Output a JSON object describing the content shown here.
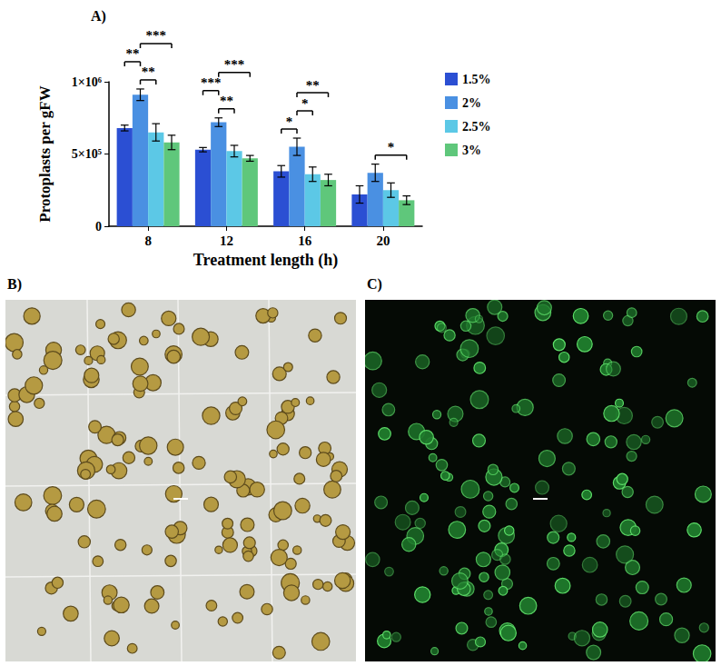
{
  "chart_data": {
    "type": "bar",
    "title": "A)",
    "categories": [
      "8",
      "12",
      "16",
      "20"
    ],
    "x_label": "Treatment length (h)",
    "y_label": "Protoplasts per gFW",
    "series": [
      {
        "name": "1.5%",
        "color": "#2b4fd3",
        "values": [
          680000,
          530000,
          380000,
          220000
        ],
        "errors": [
          20000,
          15000,
          40000,
          60000
        ]
      },
      {
        "name": "2%",
        "color": "#4a90e2",
        "values": [
          910000,
          720000,
          550000,
          370000
        ],
        "errors": [
          40000,
          30000,
          60000,
          60000
        ]
      },
      {
        "name": "2.5%",
        "color": "#5cc8e6",
        "values": [
          650000,
          520000,
          360000,
          250000
        ],
        "errors": [
          60000,
          40000,
          50000,
          50000
        ]
      },
      {
        "name": "3%",
        "color": "#5fc77b",
        "values": [
          580000,
          470000,
          320000,
          180000
        ],
        "errors": [
          50000,
          20000,
          40000,
          30000
        ]
      }
    ],
    "ylim": [
      0,
      1000000
    ],
    "yticks": [
      0,
      {
        "value": 500000,
        "label": "5×10⁵"
      },
      {
        "value": 1000000,
        "label": "1×10⁶"
      }
    ],
    "grid": false,
    "legend": "right",
    "annotations": [
      {
        "category": "8",
        "from": "2%",
        "to": "2.5%",
        "label": "**"
      },
      {
        "category": "8",
        "from": "1.5%",
        "to": "2%",
        "label": "**"
      },
      {
        "category": "8",
        "from": "2%",
        "to": "3%",
        "label": "***"
      },
      {
        "category": "12",
        "from": "2%",
        "to": "2.5%",
        "label": "**"
      },
      {
        "category": "12",
        "from": "1.5%",
        "to": "2%",
        "label": "***"
      },
      {
        "category": "12",
        "from": "2%",
        "to": "3%",
        "label": "***"
      },
      {
        "category": "16",
        "from": "1.5%",
        "to": "2%",
        "label": "*"
      },
      {
        "category": "16",
        "from": "2%",
        "to": "2.5%",
        "label": "*"
      },
      {
        "category": "16",
        "from": "2%",
        "to": "3%",
        "label": "**"
      },
      {
        "category": "20",
        "from": "2%",
        "to": "3%",
        "label": "*"
      }
    ]
  },
  "images": [
    {
      "label": "B)"
    },
    {
      "label": "C)"
    }
  ]
}
